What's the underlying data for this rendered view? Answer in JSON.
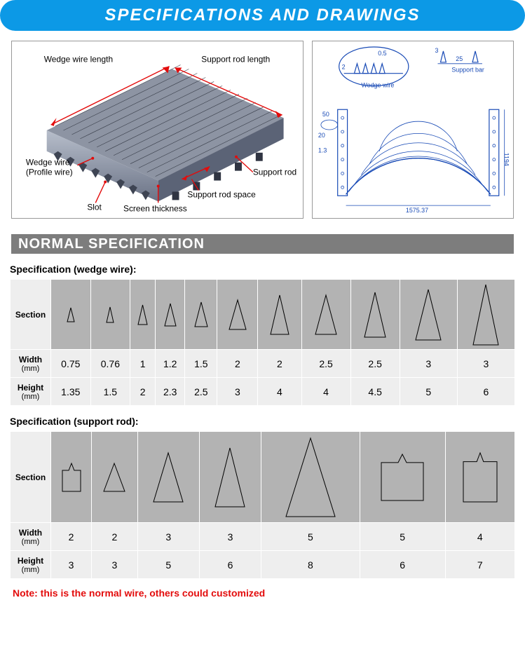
{
  "banner_title": "SPECIFICATIONS AND DRAWINGS",
  "subheader": "NORMAL SPECIFICATION",
  "colors": {
    "banner_bg": "#0c99e6",
    "banner_text": "#ffffff",
    "subheader_bg": "#7d7d7d",
    "section_bg": "#b3b3b3",
    "cell_bg": "#eeeeee",
    "note_color": "#e30c0c",
    "diagram_leader": "#e30c0c",
    "tech_line": "#1749b5"
  },
  "diagram_left": {
    "labels": {
      "wedge_wire_length": "Wedge wire length",
      "support_rod_length": "Support rod length",
      "wedge_wire_profile": "Wedge wire\n(Profile wire)",
      "slot": "Slot",
      "screen_thickness": "Screen thickness",
      "support_rod_space": "Support rod space",
      "support_rod": "Support rod"
    }
  },
  "diagram_right": {
    "labels": {
      "wedge_wire": "Wedge wire",
      "support_bar": "Support bar",
      "dim_0_5": "0.5",
      "dim_2": "2",
      "dim_3": "3",
      "dim_25": "25",
      "dim_50": "50",
      "dim_20": "20",
      "dim_1_3": "1.3",
      "dim_1575": "1575.37",
      "dim_1194": "1194"
    }
  },
  "wedge_table": {
    "title": "Specification (wedge wire):",
    "row_labels": {
      "section": "Section",
      "width": "Width",
      "height": "Height",
      "unit": "(mm)"
    },
    "columns": [
      {
        "width": 0.75,
        "height": 1.35,
        "shape": "triangle",
        "shape_w": 10,
        "shape_h": 20
      },
      {
        "width": 0.76,
        "height": 1.5,
        "shape": "triangle",
        "shape_w": 10,
        "shape_h": 22
      },
      {
        "width": 1.0,
        "height": 2.0,
        "shape": "triangle",
        "shape_w": 13,
        "shape_h": 28
      },
      {
        "width": 1.2,
        "height": 2.3,
        "shape": "triangle",
        "shape_w": 16,
        "shape_h": 32
      },
      {
        "width": 1.5,
        "height": 2.5,
        "shape": "triangle",
        "shape_w": 18,
        "shape_h": 35
      },
      {
        "width": 2.0,
        "height": 3.0,
        "shape": "triangle",
        "shape_w": 24,
        "shape_h": 42
      },
      {
        "width": 2.0,
        "height": 4.0,
        "shape": "triangle",
        "shape_w": 26,
        "shape_h": 56
      },
      {
        "width": 2.5,
        "height": 4.0,
        "shape": "triangle",
        "shape_w": 30,
        "shape_h": 56
      },
      {
        "width": 2.5,
        "height": 4.5,
        "shape": "triangle",
        "shape_w": 30,
        "shape_h": 64
      },
      {
        "width": 3.0,
        "height": 5.0,
        "shape": "triangle",
        "shape_w": 36,
        "shape_h": 72
      },
      {
        "width": 3.0,
        "height": 6.0,
        "shape": "triangle",
        "shape_w": 36,
        "shape_h": 86
      }
    ]
  },
  "support_table": {
    "title": "Specification (support rod):",
    "row_labels": {
      "section": "Section",
      "width": "Width",
      "height": "Height",
      "unit": "(mm)"
    },
    "columns": [
      {
        "width": 2.0,
        "height": 3.0,
        "shape": "house",
        "shape_w": 26,
        "shape_h": 40
      },
      {
        "width": 2.0,
        "height": 3.0,
        "shape": "triangle",
        "shape_w": 30,
        "shape_h": 40
      },
      {
        "width": 3.0,
        "height": 5.0,
        "shape": "triangle",
        "shape_w": 42,
        "shape_h": 70
      },
      {
        "width": 3.0,
        "height": 6.0,
        "shape": "triangle",
        "shape_w": 42,
        "shape_h": 84
      },
      {
        "width": 5.0,
        "height": 8.0,
        "shape": "triangle",
        "shape_w": 70,
        "shape_h": 112
      },
      {
        "width": 5.0,
        "height": 6.0,
        "shape": "house2",
        "shape_w": 60,
        "shape_h": 66
      },
      {
        "width": 4.0,
        "height": 7.0,
        "shape": "house2",
        "shape_w": 48,
        "shape_h": 70
      }
    ]
  },
  "note": "Note: this is the normal wire, others could customized"
}
